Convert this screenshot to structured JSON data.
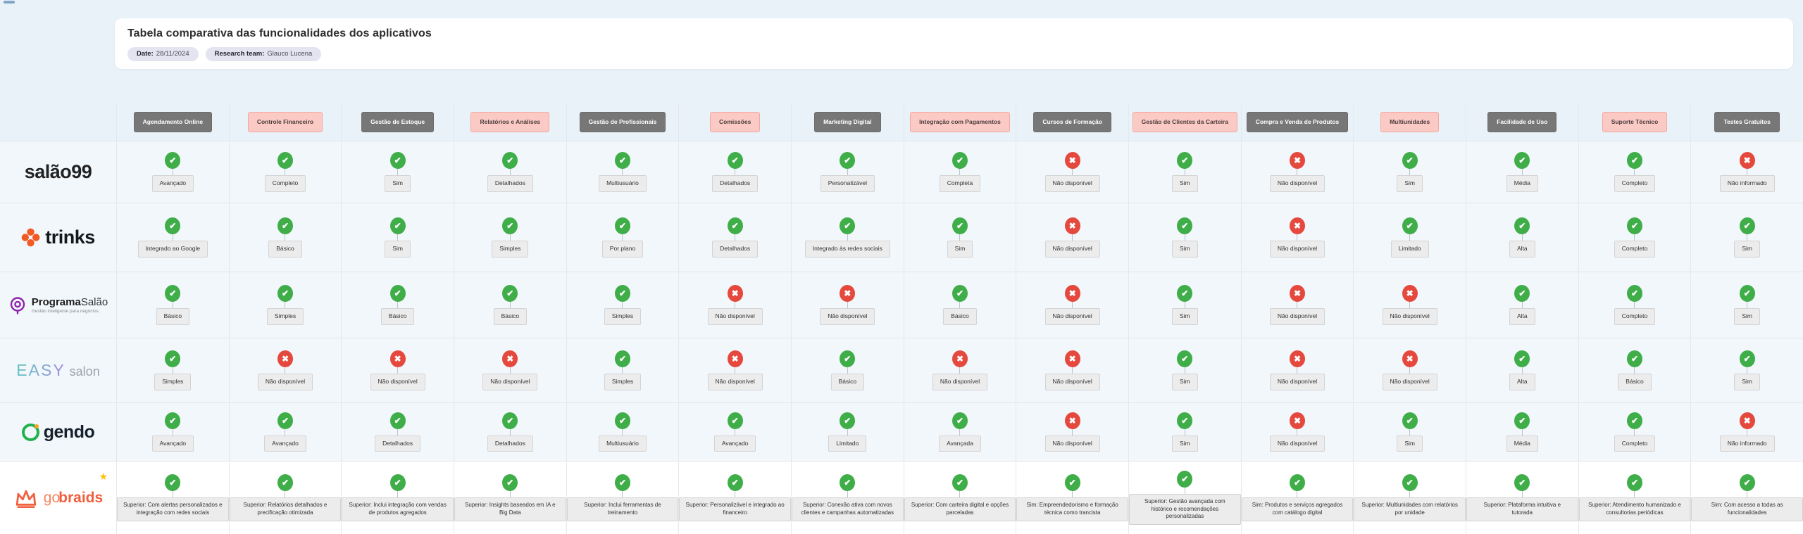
{
  "header_card": {
    "title": "Tabela comparativa das funcionalidades dos aplicativos",
    "date_label": "Date:",
    "date_value": "28/11/2024",
    "team_label": "Research team:",
    "team_value": "Glauco Lucena"
  },
  "icons": {
    "check": "✔",
    "cross": "✖",
    "star": "★"
  },
  "colors": {
    "check_green": "#3fae49",
    "cross_red": "#e5483d",
    "gray_header_bg": "#777777",
    "pink_header_bg": "#fbcac5",
    "trinks_orange": "#f15a24",
    "programa_purple": "#8e24aa",
    "gendo_green": "#22b24c",
    "gobraids_coral": "#f0603f"
  },
  "columns": [
    {
      "label": "Agendamento Online",
      "variant": "gray"
    },
    {
      "label": "Controle Financeiro",
      "variant": "pink"
    },
    {
      "label": "Gestão de Estoque",
      "variant": "gray"
    },
    {
      "label": "Relatórios e Análises",
      "variant": "pink"
    },
    {
      "label": "Gestão de Profissionais",
      "variant": "gray"
    },
    {
      "label": "Comissões",
      "variant": "pink"
    },
    {
      "label": "Marketing Digital",
      "variant": "gray"
    },
    {
      "label": "Integração com Pagamentos",
      "variant": "pink"
    },
    {
      "label": "Cursos de Formação",
      "variant": "gray"
    },
    {
      "label": "Gestão de Clientes da Carteira",
      "variant": "pink"
    },
    {
      "label": "Compra e Venda de Produtos",
      "variant": "gray"
    },
    {
      "label": "Multiunidades",
      "variant": "pink"
    },
    {
      "label": "Facilidade de Uso",
      "variant": "gray"
    },
    {
      "label": "Suporte Técnico",
      "variant": "pink"
    },
    {
      "label": "Testes Gratuitos",
      "variant": "gray"
    }
  ],
  "apps": [
    {
      "id": "salao99",
      "logo": {
        "type": "salao99",
        "text": "salão99"
      },
      "cells": [
        {
          "status": "check",
          "label": "Avançado"
        },
        {
          "status": "check",
          "label": "Completo"
        },
        {
          "status": "check",
          "label": "Sim"
        },
        {
          "status": "check",
          "label": "Detalhados"
        },
        {
          "status": "check",
          "label": "Multiusuário"
        },
        {
          "status": "check",
          "label": "Detalhados"
        },
        {
          "status": "check",
          "label": "Personalizável"
        },
        {
          "status": "check",
          "label": "Completa"
        },
        {
          "status": "cross",
          "label": "Não disponível"
        },
        {
          "status": "check",
          "label": "Sim"
        },
        {
          "status": "cross",
          "label": "Não disponível"
        },
        {
          "status": "check",
          "label": "Sim"
        },
        {
          "status": "check",
          "label": "Média"
        },
        {
          "status": "check",
          "label": "Completo"
        },
        {
          "status": "cross",
          "label": "Não informado"
        }
      ]
    },
    {
      "id": "trinks",
      "logo": {
        "type": "trinks",
        "text": "trinks"
      },
      "cells": [
        {
          "status": "check",
          "label": "Integrado ao Google"
        },
        {
          "status": "check",
          "label": "Básico"
        },
        {
          "status": "check",
          "label": "Sim"
        },
        {
          "status": "check",
          "label": "Simples"
        },
        {
          "status": "check",
          "label": "Por plano"
        },
        {
          "status": "check",
          "label": "Detalhados"
        },
        {
          "status": "check",
          "label": "Integrado às redes sociais"
        },
        {
          "status": "check",
          "label": "Sim"
        },
        {
          "status": "cross",
          "label": "Não disponível"
        },
        {
          "status": "check",
          "label": "Sim"
        },
        {
          "status": "cross",
          "label": "Não disponível"
        },
        {
          "status": "check",
          "label": "Limitado"
        },
        {
          "status": "check",
          "label": "Alta"
        },
        {
          "status": "check",
          "label": "Completo"
        },
        {
          "status": "check",
          "label": "Sim"
        }
      ]
    },
    {
      "id": "programasalao",
      "logo": {
        "type": "programasalao",
        "bold": "Programa",
        "light": "Salão",
        "subtitle": "Gestão inteligente para negócios."
      },
      "cells": [
        {
          "status": "check",
          "label": "Básico"
        },
        {
          "status": "check",
          "label": "Simples"
        },
        {
          "status": "check",
          "label": "Básico"
        },
        {
          "status": "check",
          "label": "Básico"
        },
        {
          "status": "check",
          "label": "Simples"
        },
        {
          "status": "cross",
          "label": "Não disponível"
        },
        {
          "status": "cross",
          "label": "Não disponível"
        },
        {
          "status": "check",
          "label": "Básico"
        },
        {
          "status": "cross",
          "label": "Não disponível"
        },
        {
          "status": "check",
          "label": "Sim"
        },
        {
          "status": "cross",
          "label": "Não disponível"
        },
        {
          "status": "cross",
          "label": "Não disponível"
        },
        {
          "status": "check",
          "label": "Alta"
        },
        {
          "status": "check",
          "label": "Completo"
        },
        {
          "status": "check",
          "label": "Sim"
        }
      ]
    },
    {
      "id": "easysalon",
      "logo": {
        "type": "easysalon",
        "main": "EASY",
        "secondary": "salon"
      },
      "cells": [
        {
          "status": "check",
          "label": "Simples"
        },
        {
          "status": "cross",
          "label": "Não disponível"
        },
        {
          "status": "cross",
          "label": "Não disponível"
        },
        {
          "status": "cross",
          "label": "Não disponível"
        },
        {
          "status": "check",
          "label": "Simples"
        },
        {
          "status": "cross",
          "label": "Não disponível"
        },
        {
          "status": "check",
          "label": "Básico"
        },
        {
          "status": "cross",
          "label": "Não disponível"
        },
        {
          "status": "cross",
          "label": "Não disponível"
        },
        {
          "status": "check",
          "label": "Sim"
        },
        {
          "status": "cross",
          "label": "Não disponível"
        },
        {
          "status": "cross",
          "label": "Não disponível"
        },
        {
          "status": "check",
          "label": "Alta"
        },
        {
          "status": "check",
          "label": "Básico"
        },
        {
          "status": "check",
          "label": "Sim"
        }
      ]
    },
    {
      "id": "gendo",
      "logo": {
        "type": "gendo",
        "text": "gendo"
      },
      "cells": [
        {
          "status": "check",
          "label": "Avançado"
        },
        {
          "status": "check",
          "label": "Avançado"
        },
        {
          "status": "check",
          "label": "Detalhados"
        },
        {
          "status": "check",
          "label": "Detalhados"
        },
        {
          "status": "check",
          "label": "Multiusuário"
        },
        {
          "status": "check",
          "label": "Avançado"
        },
        {
          "status": "check",
          "label": "Limitado"
        },
        {
          "status": "check",
          "label": "Avançada"
        },
        {
          "status": "cross",
          "label": "Não disponível"
        },
        {
          "status": "check",
          "label": "Sim"
        },
        {
          "status": "cross",
          "label": "Não disponível"
        },
        {
          "status": "check",
          "label": "Sim"
        },
        {
          "status": "check",
          "label": "Média"
        },
        {
          "status": "check",
          "label": "Completo"
        },
        {
          "status": "cross",
          "label": "Não informado"
        }
      ]
    },
    {
      "id": "gobraids",
      "logo": {
        "type": "gobraids",
        "light": "go",
        "bold": "braids"
      },
      "cells": [
        {
          "status": "check",
          "label": "Superior: Com alertas personalizados e integração com redes sociais"
        },
        {
          "status": "check",
          "label": "Superior: Relatórios detalhados e precificação otimizada"
        },
        {
          "status": "check",
          "label": "Superior: Inclui integração com vendas de produtos agregados"
        },
        {
          "status": "check",
          "label": "Superior: Insights baseados em IA e Big Data"
        },
        {
          "status": "check",
          "label": "Superior: Inclui ferramentas de treinamento"
        },
        {
          "status": "check",
          "label": "Superior: Personalizável e integrado ao financeiro"
        },
        {
          "status": "check",
          "label": "Superior: Conexão ativa com novos clientes e campanhas automatizadas"
        },
        {
          "status": "check",
          "label": "Superior: Com carteira digital e opções parceladas"
        },
        {
          "status": "check",
          "label": "Sim: Empreendedorismo e formação técnica como trancista"
        },
        {
          "status": "check",
          "label": "Superior: Gestão avançada com histórico e recomendações personalizadas"
        },
        {
          "status": "check",
          "label": "Sim: Produtos e serviços agregados com catálogo digital"
        },
        {
          "status": "check",
          "label": "Superior: Multiunidades com relatórios por unidade"
        },
        {
          "status": "check",
          "label": "Superior: Plataforma intuitiva e tutorada"
        },
        {
          "status": "check",
          "label": "Superior: Atendimento humanizado e consultorias periódicas"
        },
        {
          "status": "check",
          "label": "Sim: Com acesso a todas as funcionalidades"
        }
      ]
    }
  ]
}
